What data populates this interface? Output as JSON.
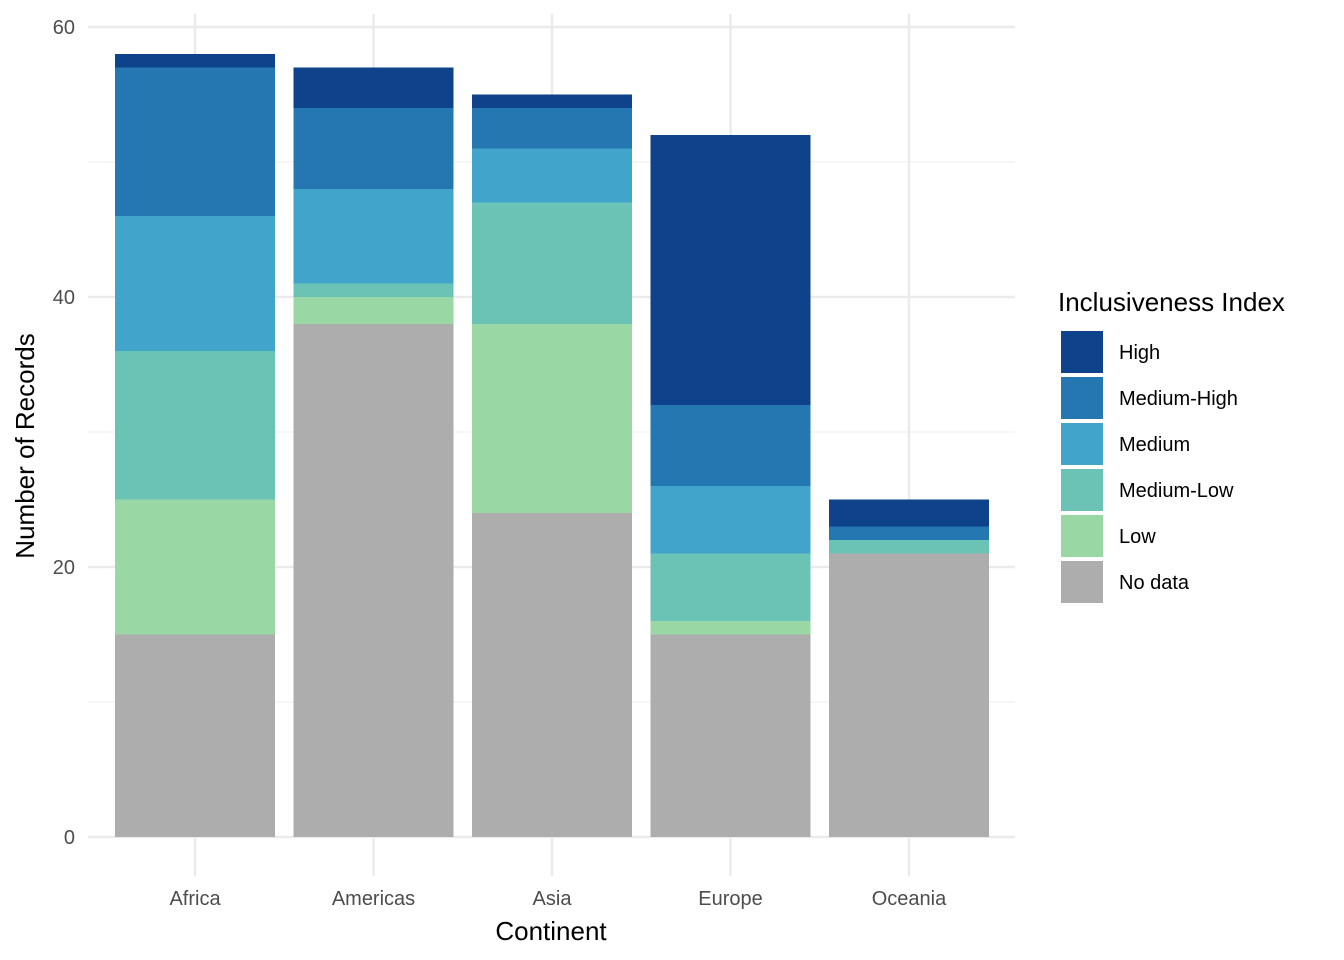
{
  "chart_data": {
    "type": "bar",
    "stacked": true,
    "categories": [
      "Africa",
      "Americas",
      "Asia",
      "Europe",
      "Oceania"
    ],
    "series": [
      {
        "name": "No data",
        "color": "#adadad",
        "values": [
          15,
          38,
          24,
          15,
          21
        ]
      },
      {
        "name": "Low",
        "color": "#99d8a4",
        "values": [
          10,
          2,
          14,
          1,
          0
        ]
      },
      {
        "name": "Medium-Low",
        "color": "#6bc3b5",
        "values": [
          11,
          1,
          9,
          5,
          1
        ]
      },
      {
        "name": "Medium",
        "color": "#41a5cb",
        "values": [
          10,
          7,
          4,
          5,
          0
        ]
      },
      {
        "name": "Medium-High",
        "color": "#2477b0",
        "values": [
          11,
          6,
          3,
          6,
          1
        ]
      },
      {
        "name": "High",
        "color": "#0e428b",
        "values": [
          1,
          3,
          1,
          20,
          2
        ]
      }
    ],
    "xlabel": "Continent",
    "ylabel": "Number of Records",
    "ylim": [
      0,
      60
    ],
    "yticks": [
      0,
      20,
      40,
      60
    ],
    "grid": true,
    "legend": {
      "title": "Inclusiveness Index",
      "position": "right",
      "order": [
        "High",
        "Medium-High",
        "Medium",
        "Medium-Low",
        "Low",
        "No data"
      ]
    }
  }
}
